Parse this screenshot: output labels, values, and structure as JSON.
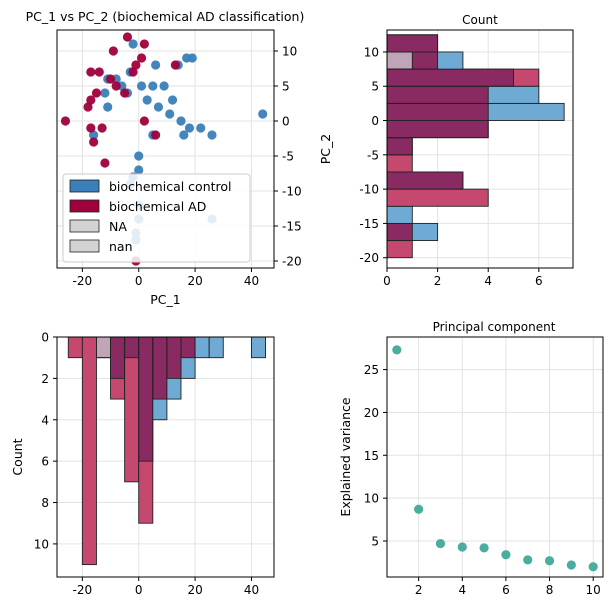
{
  "colors": {
    "control": "#3a7fb8",
    "ad": "#a0003d",
    "control_fill": "#6faad4",
    "ad_fill": "#c5486f",
    "overlap_fill": "#8a2a62",
    "na_fill": "#d3d3d3",
    "overlap_na": "#c0a4b8",
    "teal": "#4aada0",
    "grid": "#e3e3e3"
  },
  "chart_data": [
    {
      "type": "scatter",
      "title": "PC_1 vs PC_2 (biochemical AD classification)",
      "xlabel": "PC_1",
      "ylabel": "PC_2",
      "xlim": [
        -29,
        48
      ],
      "ylim": [
        -21,
        13
      ],
      "xticks": [
        -20,
        0,
        20,
        40
      ],
      "yticks": [
        10,
        5,
        0,
        -5,
        -10,
        -15,
        -20
      ],
      "legend": [
        "biochemical control",
        "biochemical AD",
        "NA",
        "nan"
      ],
      "series": [
        {
          "name": "biochemical control",
          "points": [
            [
              -2,
              11
            ],
            [
              -3,
              7
            ],
            [
              6,
              8
            ],
            [
              -8,
              6
            ],
            [
              -11,
              6
            ],
            [
              14,
              8
            ],
            [
              17,
              9
            ],
            [
              19,
              9
            ],
            [
              -6,
              5
            ],
            [
              1,
              5
            ],
            [
              5,
              5
            ],
            [
              9,
              5
            ],
            [
              -4,
              4
            ],
            [
              -12,
              4
            ],
            [
              3,
              3
            ],
            [
              12,
              3
            ],
            [
              7,
              2
            ],
            [
              -11,
              2
            ],
            [
              11,
              1
            ],
            [
              44,
              1
            ],
            [
              15,
              0
            ],
            [
              18,
              -1
            ],
            [
              22,
              -1
            ],
            [
              -16,
              -2
            ],
            [
              5,
              -2
            ],
            [
              16,
              -2
            ],
            [
              26,
              -2
            ],
            [
              0,
              -5
            ],
            [
              0,
              -7
            ],
            [
              -2,
              -8
            ],
            [
              -3,
              -9
            ],
            [
              0,
              -12
            ],
            [
              0,
              -14
            ],
            [
              26,
              -14
            ],
            [
              -1,
              -16
            ],
            [
              -1,
              -17
            ]
          ]
        },
        {
          "name": "biochemical AD",
          "points": [
            [
              -9,
              10
            ],
            [
              -4,
              12
            ],
            [
              2,
              11
            ],
            [
              1,
              9
            ],
            [
              -1,
              8
            ],
            [
              -17,
              7
            ],
            [
              -14,
              7
            ],
            [
              -10,
              6
            ],
            [
              13,
              8
            ],
            [
              -2,
              7
            ],
            [
              -8,
              5
            ],
            [
              -15,
              4
            ],
            [
              -17,
              3
            ],
            [
              -18,
              2
            ],
            [
              -5,
              4
            ],
            [
              -26,
              0
            ],
            [
              2,
              0
            ],
            [
              -17,
              -1
            ],
            [
              -13,
              -1
            ],
            [
              6,
              -2
            ],
            [
              -16,
              -3
            ],
            [
              -12,
              -6
            ],
            [
              -1,
              -20
            ]
          ]
        }
      ]
    },
    {
      "type": "histogram-horizontal",
      "title": "Count",
      "xlabel": "",
      "ylabel": "PC_2",
      "xlim": [
        0,
        7.35
      ],
      "ylim": [
        -21.5,
        13.2
      ],
      "xticks": [
        0,
        2,
        4,
        6
      ],
      "yticks": [
        10,
        5,
        0,
        -5,
        -10,
        -15,
        -20
      ],
      "bin_edges": [
        -20,
        -17.5,
        -15,
        -12.5,
        -10,
        -7.5,
        -5,
        -2.5,
        0,
        2.5,
        5,
        7.5,
        10,
        12.5
      ],
      "series": [
        {
          "name": "biochemical control",
          "values": [
            0,
            2,
            1,
            0,
            3,
            0,
            1,
            4,
            7,
            6,
            5,
            3,
            2
          ]
        },
        {
          "name": "biochemical AD",
          "values": [
            1,
            1,
            0,
            4,
            3,
            1,
            1,
            4,
            4,
            4,
            6,
            2,
            2
          ]
        },
        {
          "name": "NA",
          "values": [
            0,
            0,
            0,
            0,
            0,
            0,
            0,
            0,
            0,
            0,
            0,
            0,
            0
          ]
        },
        {
          "name": "nan",
          "values": [
            0,
            0,
            0,
            0,
            0,
            0,
            0,
            0,
            0,
            0,
            0,
            1,
            0
          ]
        }
      ]
    },
    {
      "type": "histogram",
      "title": "",
      "xlabel": "",
      "ylabel": "Count",
      "xlim": [
        -29,
        48
      ],
      "ylim": [
        11.6,
        0
      ],
      "xticks": [
        -20,
        0,
        20,
        40
      ],
      "yticks": [
        0,
        2,
        4,
        6,
        8,
        10
      ],
      "bin_edges": [
        -25,
        -20,
        -15,
        -10,
        -5,
        0,
        5,
        10,
        15,
        20,
        25,
        30,
        35,
        40,
        45
      ],
      "series": [
        {
          "name": "biochemical control",
          "values": [
            0,
            0,
            0,
            2,
            1,
            6,
            4,
            3,
            2,
            1,
            1,
            0,
            0,
            1
          ]
        },
        {
          "name": "biochemical AD",
          "values": [
            1,
            11,
            1,
            3,
            7,
            9,
            3,
            2,
            1,
            0,
            0,
            0,
            0,
            0
          ]
        },
        {
          "name": "NA",
          "values": [
            0,
            0,
            0,
            0,
            0,
            0,
            0,
            0,
            0,
            0,
            0,
            0,
            0,
            0
          ]
        },
        {
          "name": "nan",
          "values": [
            0,
            0,
            1,
            0,
            0,
            0,
            0,
            0,
            0,
            0,
            0,
            0,
            0,
            0
          ]
        }
      ]
    },
    {
      "type": "scatter",
      "title": "Principal component",
      "xlabel": "",
      "ylabel": "Explained variance",
      "xlim": [
        0.55,
        10.45
      ],
      "ylim": [
        0.8,
        28.8
      ],
      "xticks": [
        2,
        4,
        6,
        8,
        10
      ],
      "yticks": [
        5,
        10,
        15,
        20,
        25
      ],
      "x": [
        1,
        2,
        3,
        4,
        5,
        6,
        7,
        8,
        9,
        10
      ],
      "y": [
        27.3,
        8.7,
        4.7,
        4.3,
        4.2,
        3.4,
        2.8,
        2.7,
        2.2,
        2.0
      ]
    }
  ]
}
